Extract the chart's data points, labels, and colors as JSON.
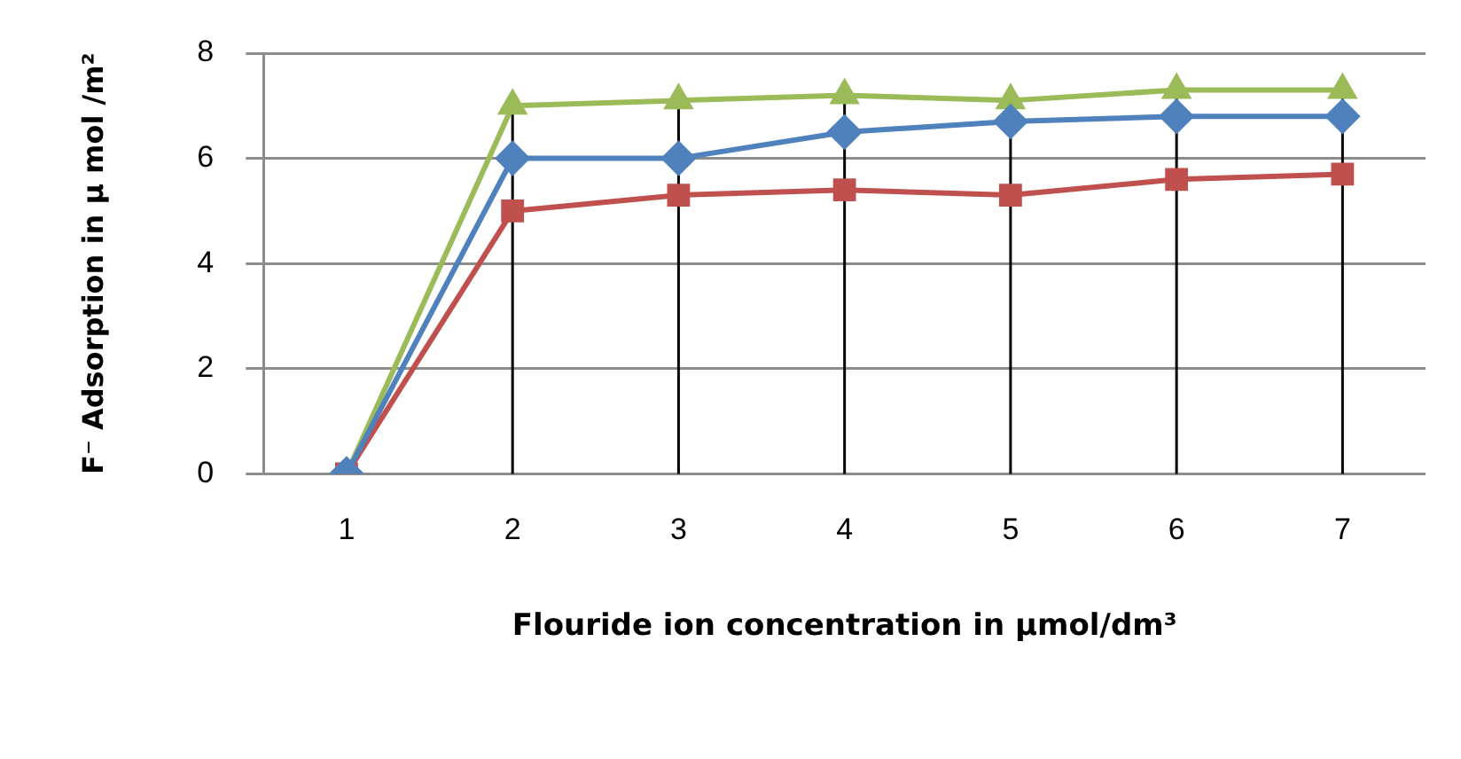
{
  "chart_data": {
    "type": "line",
    "xlabel": "Flouride ion concentration in µmol/dm³",
    "ylabel": "F⁻ Adsorption in µ mol /m²",
    "categories": [
      "1",
      "2",
      "3",
      "4",
      "5",
      "6",
      "7"
    ],
    "series": [
      {
        "color": "#4f81bd",
        "marker": "diamond",
        "values": [
          0,
          6.0,
          6.0,
          6.5,
          6.7,
          6.8,
          6.8
        ]
      },
      {
        "color": "#c0504d",
        "marker": "square",
        "values": [
          0,
          5.0,
          5.3,
          5.4,
          5.3,
          5.6,
          5.7
        ]
      },
      {
        "color": "#9bbb59",
        "marker": "triangle",
        "values": [
          0,
          7.0,
          7.1,
          7.2,
          7.1,
          7.3,
          7.3
        ]
      }
    ],
    "ylim": [
      0,
      8
    ],
    "yticks": [
      0,
      2,
      4,
      6,
      8
    ],
    "grid": true,
    "legend": false,
    "line_style": "solid"
  }
}
